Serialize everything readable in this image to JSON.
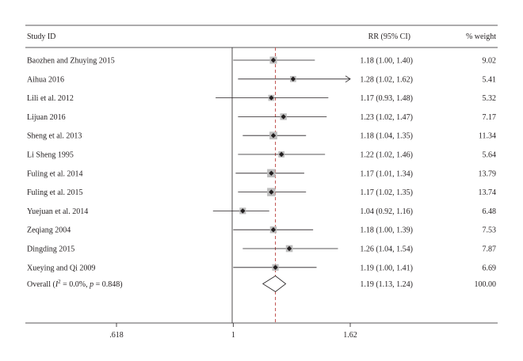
{
  "chart_data": {
    "type": "forest",
    "headers": {
      "study": "Study ID",
      "effect": "RR (95% CI)",
      "weight": "% weight"
    },
    "x_scale": "log",
    "xlim": [
      0.618,
      1.62
    ],
    "x_ticks": [
      {
        "value": 0.618,
        "label": ".618"
      },
      {
        "value": 1,
        "label": "1"
      },
      {
        "value": 1.62,
        "label": "1.62"
      }
    ],
    "null_line": 1,
    "studies": [
      {
        "study": "Baozhen and Zhuying 2015",
        "rr": 1.18,
        "lower": 1.0,
        "upper": 1.4,
        "ci_text": "1.18 (1.00, 1.40)",
        "weight": 9.02,
        "weight_text": "9.02"
      },
      {
        "study": "Aihua 2016",
        "rr": 1.28,
        "lower": 1.02,
        "upper": 1.62,
        "ci_text": "1.28 (1.02, 1.62)",
        "weight": 5.41,
        "weight_text": "5.41",
        "arrow_right": true
      },
      {
        "study": "Lili et al. 2012",
        "rr": 1.17,
        "lower": 0.93,
        "upper": 1.48,
        "ci_text": "1.17 (0.93, 1.48)",
        "weight": 5.32,
        "weight_text": "5.32"
      },
      {
        "study": "Lijuan 2016",
        "rr": 1.23,
        "lower": 1.02,
        "upper": 1.47,
        "ci_text": "1.23 (1.02, 1.47)",
        "weight": 7.17,
        "weight_text": "7.17"
      },
      {
        "study": "Sheng et al. 2013",
        "rr": 1.18,
        "lower": 1.04,
        "upper": 1.35,
        "ci_text": "1.18 (1.04, 1.35)",
        "weight": 11.34,
        "weight_text": "11.34"
      },
      {
        "study": "Li Sheng 1995",
        "rr": 1.22,
        "lower": 1.02,
        "upper": 1.46,
        "ci_text": "1.22 (1.02, 1.46)",
        "weight": 5.64,
        "weight_text": "5.64"
      },
      {
        "study": "Fuling et al. 2014",
        "rr": 1.17,
        "lower": 1.01,
        "upper": 1.34,
        "ci_text": "1.17 (1.01, 1.34)",
        "weight": 13.79,
        "weight_text": "13.79"
      },
      {
        "study": "Fuling et al. 2015",
        "rr": 1.17,
        "lower": 1.02,
        "upper": 1.35,
        "ci_text": "1.17 (1.02, 1.35)",
        "weight": 13.74,
        "weight_text": "13.74"
      },
      {
        "study": "Yuejuan et al. 2014",
        "rr": 1.04,
        "lower": 0.92,
        "upper": 1.16,
        "ci_text": "1.04 (0.92, 1.16)",
        "weight": 6.48,
        "weight_text": "6.48"
      },
      {
        "study": "Zeqiang 2004",
        "rr": 1.18,
        "lower": 1.0,
        "upper": 1.39,
        "ci_text": "1.18 (1.00, 1.39)",
        "weight": 7.53,
        "weight_text": "7.53"
      },
      {
        "study": "Dingding 2015",
        "rr": 1.26,
        "lower": 1.04,
        "upper": 1.54,
        "ci_text": "1.26 (1.04, 1.54)",
        "weight": 7.87,
        "weight_text": "7.87"
      },
      {
        "study": "Xueying and Qi 2009",
        "rr": 1.19,
        "lower": 1.0,
        "upper": 1.41,
        "ci_text": "1.19 (1.00, 1.41)",
        "weight": 6.69,
        "weight_text": "6.69"
      }
    ],
    "overall": {
      "label_prefix": "Overall (",
      "i2_symbol": "I",
      "i2_sup": "2",
      "label_stats": " = 0.0%, ",
      "p_symbol": "p",
      "label_p": " = 0.848)",
      "rr": 1.19,
      "lower": 1.13,
      "upper": 1.24,
      "ci_text": "1.19 (1.13, 1.24)",
      "weight": 100.0,
      "weight_text": "100.00"
    },
    "colors": {
      "text": "#231f20",
      "axis": "#231f20",
      "pooled_line": "#c0504d",
      "marker": "#231f20",
      "weight_box": "#bdbdbd"
    }
  }
}
